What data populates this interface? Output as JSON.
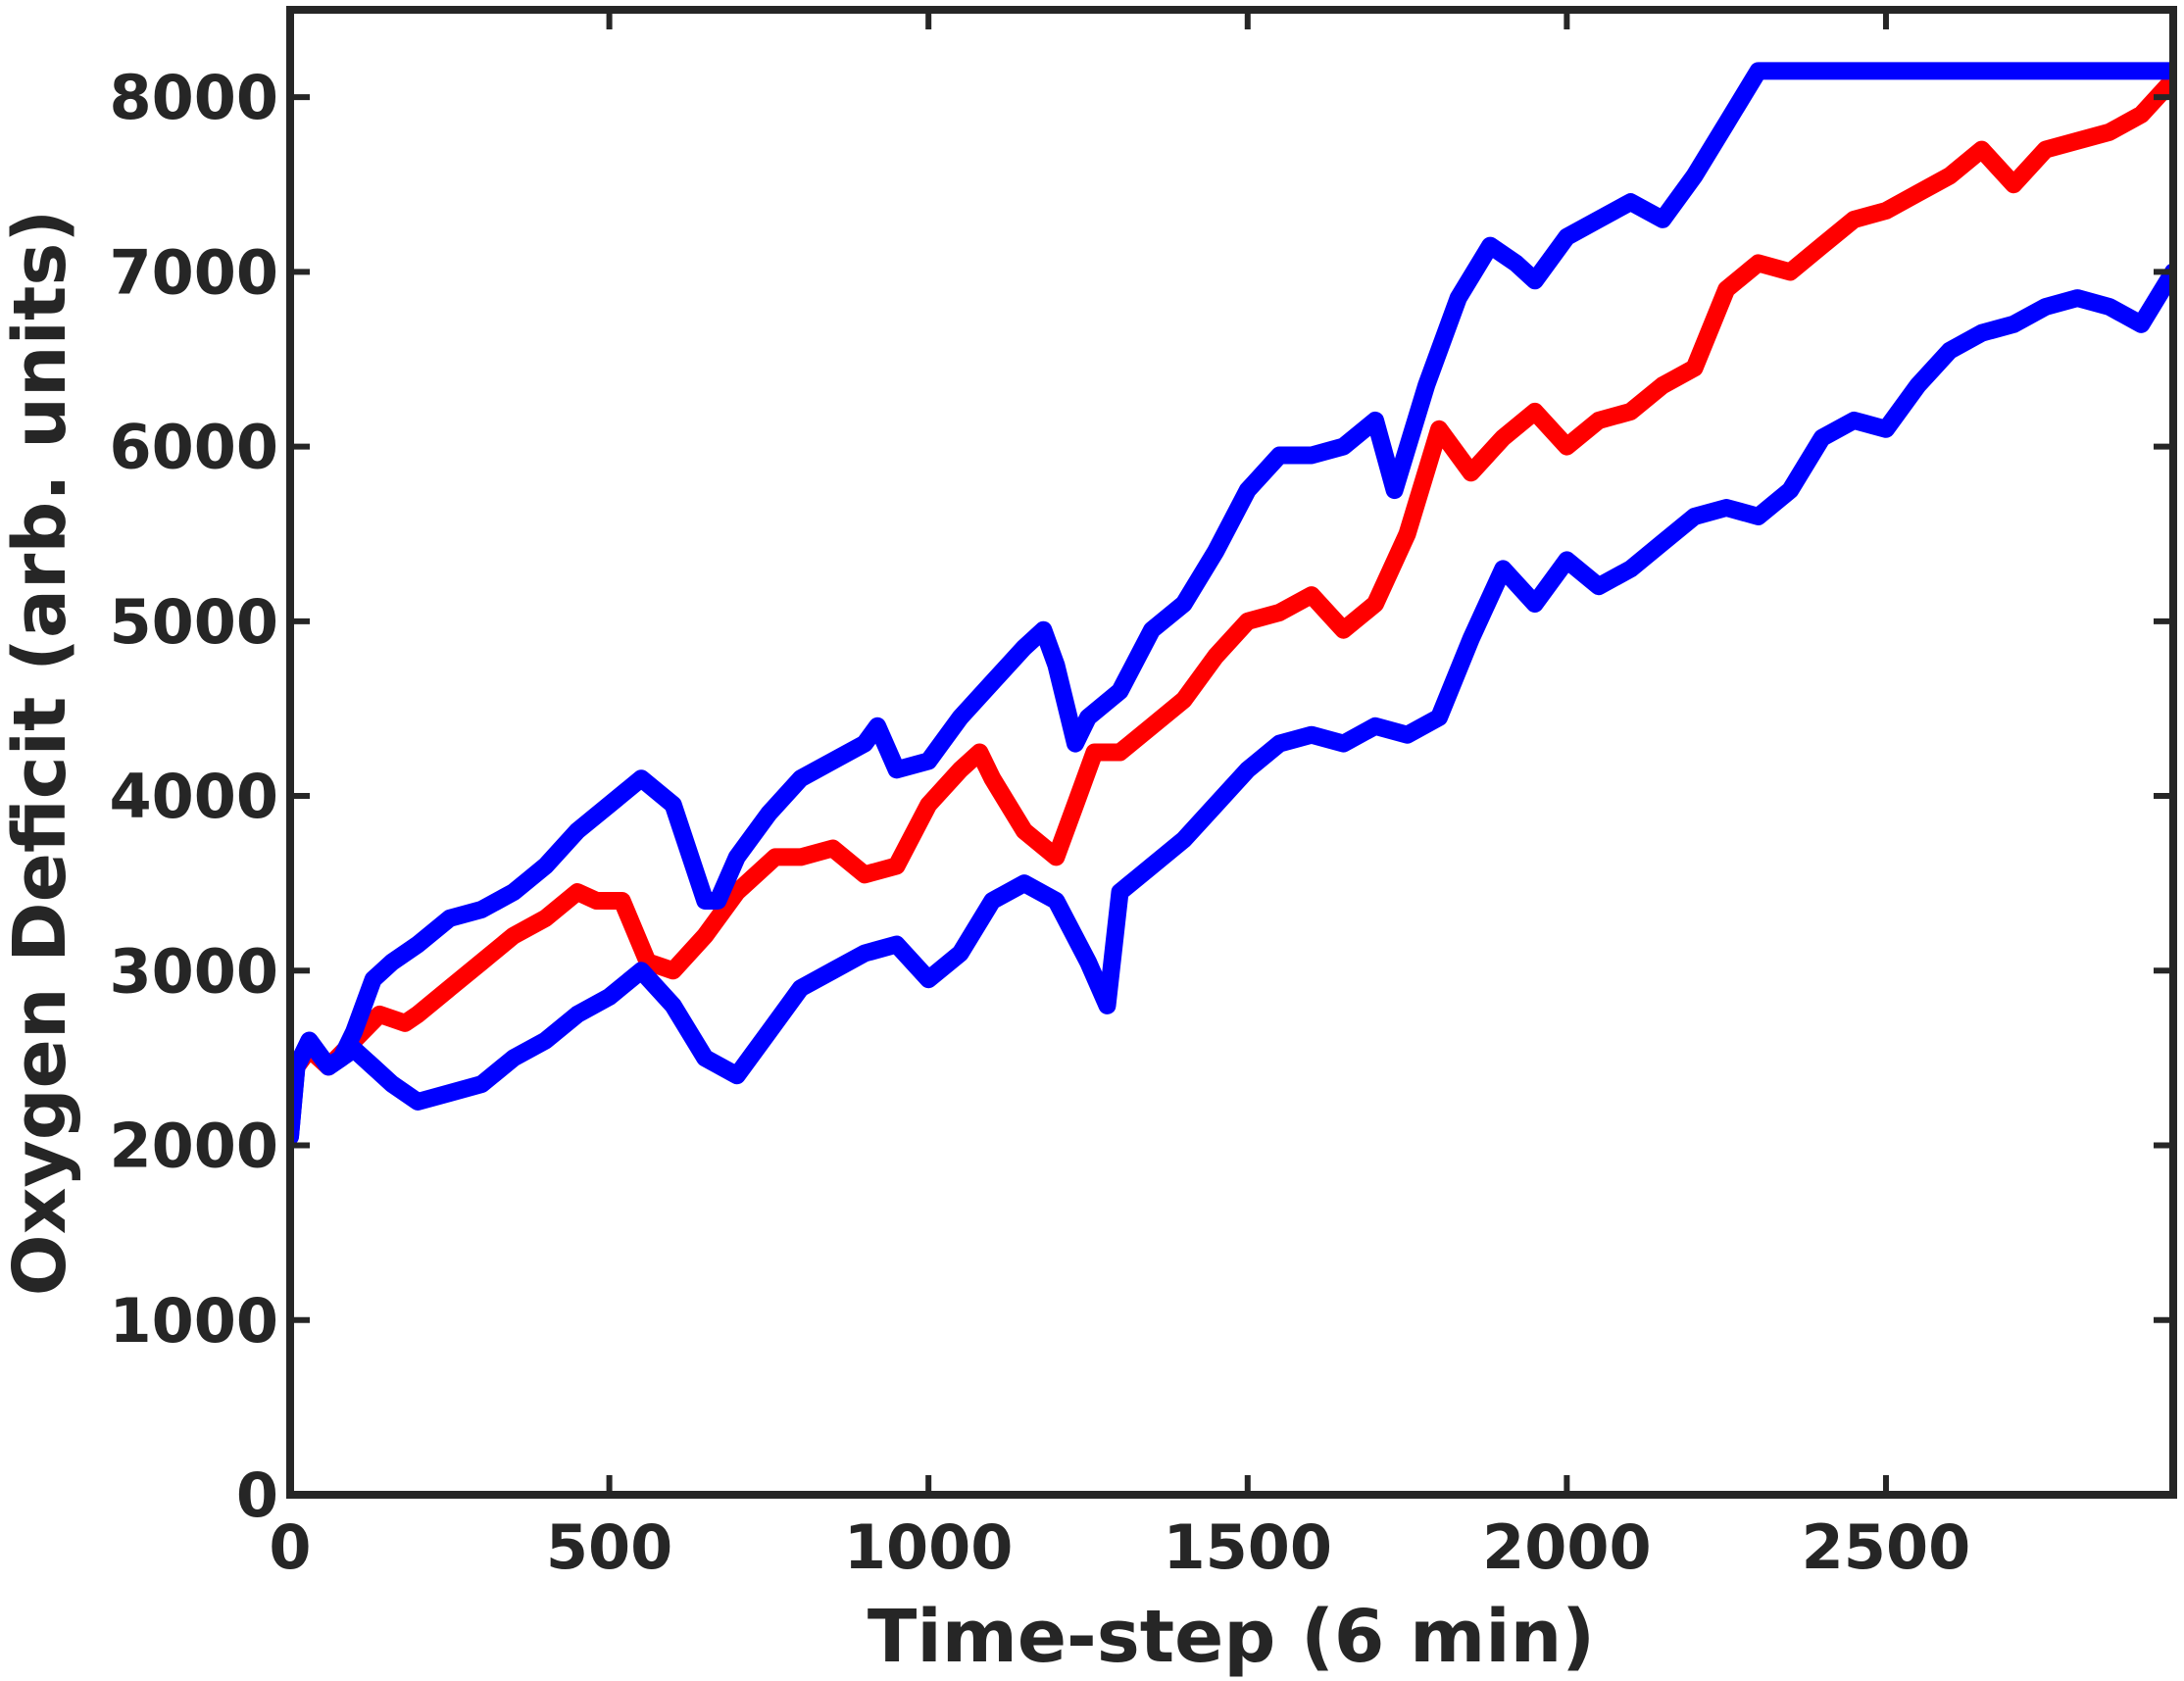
{
  "chart_data": {
    "type": "line",
    "title": "",
    "xlabel": "Time-step (6 min)",
    "ylabel": "Oxygen Deficit (arb. units)",
    "xlim": [
      0,
      2950
    ],
    "ylim": [
      0,
      8500
    ],
    "xticks": [
      0,
      500,
      1000,
      1500,
      2000,
      2500
    ],
    "yticks": [
      0,
      1000,
      2000,
      3000,
      4000,
      5000,
      6000,
      7000,
      8000
    ],
    "xtick_labels": [
      "0",
      "500",
      "1000",
      "1500",
      "2000",
      "2500"
    ],
    "ytick_labels": [
      "0",
      "1000",
      "2000",
      "3000",
      "4000",
      "5000",
      "6000",
      "7000",
      "8000"
    ],
    "grid": false,
    "legend": "none",
    "series": [
      {
        "color": "#ff0000",
        "x": [
          0,
          30,
          60,
          100,
          140,
          180,
          200,
          250,
          300,
          350,
          400,
          450,
          480,
          520,
          560,
          600,
          650,
          700,
          760,
          800,
          850,
          900,
          950,
          1000,
          1050,
          1080,
          1100,
          1150,
          1200,
          1230,
          1260,
          1300,
          1350,
          1400,
          1450,
          1500,
          1550,
          1600,
          1650,
          1700,
          1750,
          1800,
          1850,
          1900,
          1950,
          2000,
          2050,
          2100,
          2150,
          2200,
          2250,
          2300,
          2350,
          2400,
          2450,
          2500,
          2550,
          2600,
          2650,
          2700,
          2750,
          2800,
          2850,
          2900,
          2950
        ],
        "y": [
          2400,
          2550,
          2450,
          2600,
          2750,
          2700,
          2750,
          2900,
          3050,
          3200,
          3300,
          3450,
          3400,
          3400,
          3050,
          3000,
          3200,
          3450,
          3650,
          3650,
          3700,
          3550,
          3600,
          3950,
          4150,
          4250,
          4100,
          3800,
          3650,
          3950,
          4250,
          4250,
          4400,
          4550,
          4800,
          5000,
          5050,
          5150,
          4950,
          5100,
          5500,
          6100,
          5850,
          6050,
          6200,
          6000,
          6150,
          6200,
          6350,
          6450,
          6900,
          7050,
          7000,
          7150,
          7300,
          7350,
          7450,
          7550,
          7700,
          7500,
          7700,
          7750,
          7800,
          7900,
          8100
        ]
      },
      {
        "color": "#0000ff",
        "x": [
          0,
          10,
          30,
          60,
          80,
          100,
          130,
          160,
          200,
          250,
          300,
          350,
          400,
          450,
          500,
          550,
          600,
          650,
          670,
          700,
          750,
          800,
          850,
          900,
          920,
          950,
          1000,
          1050,
          1100,
          1150,
          1180,
          1200,
          1230,
          1250,
          1300,
          1350,
          1400,
          1450,
          1500,
          1550,
          1600,
          1650,
          1700,
          1730,
          1780,
          1830,
          1880,
          1920,
          1950,
          2000,
          2050,
          2100,
          2150,
          2200,
          2250,
          2300,
          2320,
          2400,
          2500,
          2600,
          2700,
          2800,
          2900,
          2950
        ],
        "y": [
          2050,
          2450,
          2600,
          2450,
          2500,
          2650,
          2950,
          3050,
          3150,
          3300,
          3350,
          3450,
          3600,
          3800,
          3950,
          4100,
          3950,
          3400,
          3400,
          3650,
          3900,
          4100,
          4200,
          4300,
          4400,
          4150,
          4200,
          4450,
          4650,
          4850,
          4950,
          4750,
          4300,
          4450,
          4600,
          4950,
          5100,
          5400,
          5750,
          5950,
          5950,
          6000,
          6150,
          5750,
          6350,
          6850,
          7150,
          7050,
          6950,
          7200,
          7300,
          7400,
          7300,
          7550,
          7850,
          8150,
          8150,
          8150,
          8150,
          8150,
          8150,
          8150,
          8150,
          8150
        ]
      },
      {
        "color": "#0000ff",
        "x": [
          0,
          10,
          30,
          60,
          80,
          100,
          130,
          160,
          200,
          250,
          300,
          350,
          400,
          450,
          500,
          550,
          600,
          650,
          700,
          750,
          800,
          850,
          900,
          950,
          1000,
          1050,
          1100,
          1150,
          1200,
          1250,
          1280,
          1300,
          1350,
          1400,
          1450,
          1500,
          1550,
          1600,
          1650,
          1700,
          1750,
          1800,
          1850,
          1900,
          1950,
          2000,
          2050,
          2100,
          2150,
          2200,
          2250,
          2300,
          2350,
          2400,
          2450,
          2500,
          2550,
          2600,
          2650,
          2700,
          2750,
          2800,
          2850,
          2900,
          2950
        ],
        "y": [
          2050,
          2450,
          2600,
          2450,
          2500,
          2550,
          2450,
          2350,
          2250,
          2300,
          2350,
          2500,
          2600,
          2750,
          2850,
          3000,
          2800,
          2500,
          2400,
          2650,
          2900,
          3000,
          3100,
          3150,
          2950,
          3100,
          3400,
          3500,
          3400,
          3050,
          2800,
          3450,
          3600,
          3750,
          3950,
          4150,
          4300,
          4350,
          4300,
          4400,
          4350,
          4450,
          4900,
          5300,
          5100,
          5350,
          5200,
          5300,
          5450,
          5600,
          5650,
          5600,
          5750,
          6050,
          6150,
          6100,
          6350,
          6550,
          6650,
          6700,
          6800,
          6850,
          6800,
          6700,
          7000
        ]
      }
    ]
  }
}
